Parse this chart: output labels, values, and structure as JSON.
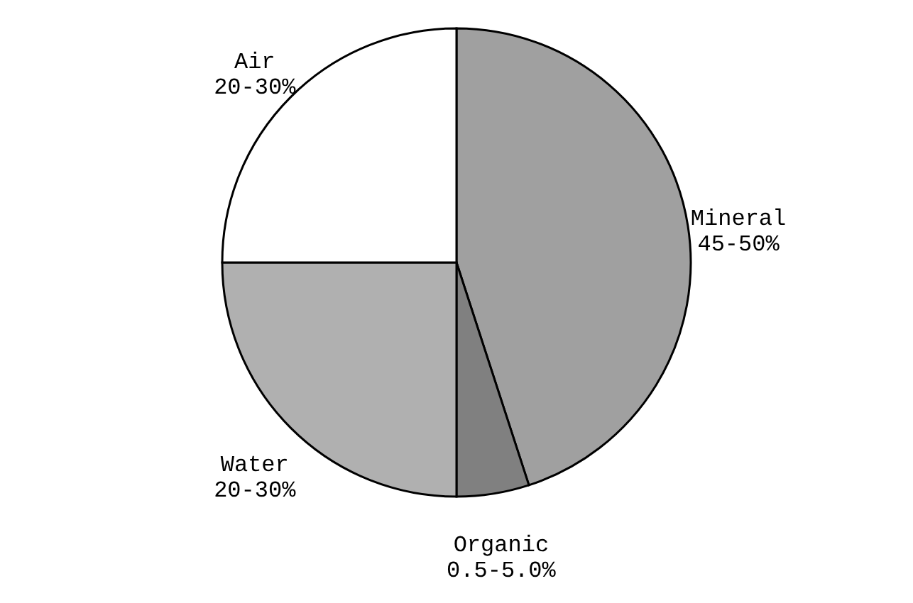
{
  "chart_data": {
    "type": "pie",
    "categories": [
      "Mineral",
      "Organic",
      "Water",
      "Air"
    ],
    "values": [
      45,
      5,
      25,
      25
    ],
    "annotations": [
      "45-50%",
      "0.5-5.0%",
      "20-30%",
      "20-30%"
    ],
    "colors": [
      "#a0a0a0",
      "#808080",
      "#b0b0b0",
      "#ffffff"
    ]
  }
}
